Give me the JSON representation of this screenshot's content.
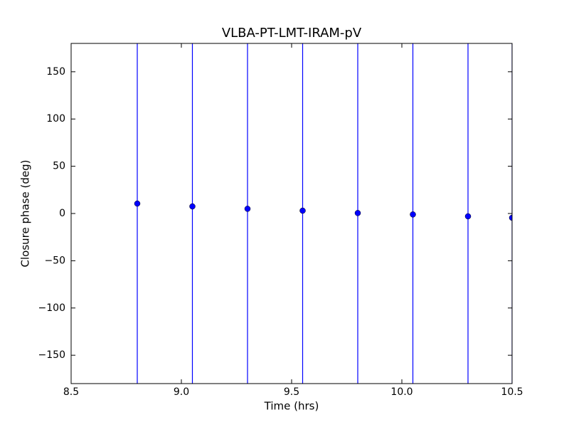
{
  "chart_data": {
    "type": "errorbar",
    "title": "VLBA-PT-LMT-IRAM-pV",
    "xlabel": "Time (hrs)",
    "ylabel": "Closure phase (deg)",
    "x": [
      8.8,
      9.05,
      9.3,
      9.55,
      9.8,
      10.05,
      10.3,
      10.5
    ],
    "values": [
      10.5,
      7.5,
      5,
      3,
      0.5,
      -1,
      -3,
      -4.5
    ],
    "errors": [
      200,
      200,
      200,
      200,
      200,
      200,
      200,
      200
    ],
    "color": "#0000ff",
    "xlim": [
      8.5,
      10.5
    ],
    "ylim": [
      -180,
      180
    ],
    "xticks": [
      8.5,
      {
        "value": 9,
        "label": "9.0"
      },
      9.5,
      {
        "value": 10,
        "label": "10.0"
      },
      10.5
    ],
    "yticks": [
      {
        "value": -150,
        "label": "−150"
      },
      {
        "value": -100,
        "label": "−100"
      },
      {
        "value": -50,
        "label": "−50"
      },
      0,
      50,
      100,
      150
    ]
  }
}
